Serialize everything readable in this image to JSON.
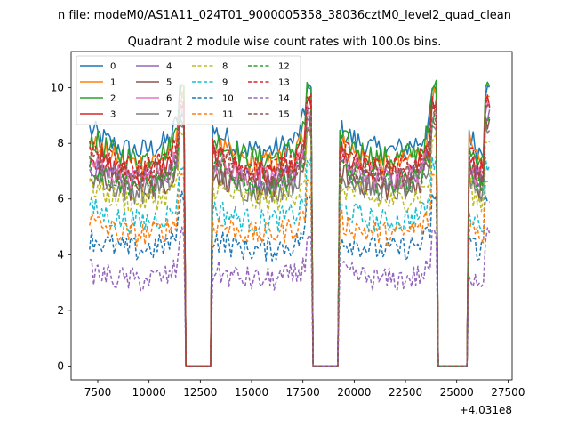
{
  "figure": {
    "suptitle": "n file: modeM0/AS1A11_024T01_9000005358_38036cztM0_level2_quad_clean",
    "title": "Quadrant 2 module wise count rates with 100.0s bins.",
    "offset_label": "+4.031e8"
  },
  "chart_data": {
    "type": "line",
    "title": "Quadrant 2 module wise count rates with 100.0s bins.",
    "xlabel": "",
    "ylabel": "",
    "x_offset": 403100000,
    "xlim": [
      6200,
      27700
    ],
    "ylim": [
      -0.5,
      11.3
    ],
    "xticks": [
      7500,
      10000,
      12500,
      15000,
      17500,
      20000,
      22500,
      25000,
      27500
    ],
    "yticks": [
      0,
      2,
      4,
      6,
      8,
      10
    ],
    "grid": false,
    "legend": {
      "placement": "upper-left",
      "columns": 4
    },
    "good_intervals": [
      [
        7100,
        11750
      ],
      [
        13050,
        17900
      ],
      [
        19250,
        24050
      ],
      [
        25600,
        26650
      ]
    ],
    "bin_seconds": 100,
    "series": [
      {
        "name": "0",
        "color": "#1f77b4",
        "dash": "solid",
        "mean": 8.5,
        "spike": 10.1
      },
      {
        "name": "1",
        "color": "#ff7f0e",
        "dash": "solid",
        "mean": 8.0,
        "spike": 9.9
      },
      {
        "name": "2",
        "color": "#2ca02c",
        "dash": "solid",
        "mean": 8.2,
        "spike": 10.2
      },
      {
        "name": "3",
        "color": "#d62728",
        "dash": "solid",
        "mean": 7.6,
        "spike": 9.6
      },
      {
        "name": "4",
        "color": "#9467bd",
        "dash": "solid",
        "mean": 7.3,
        "spike": 9.2
      },
      {
        "name": "5",
        "color": "#8c564b",
        "dash": "solid",
        "mean": 7.0,
        "spike": 8.9
      },
      {
        "name": "6",
        "color": "#e377c2",
        "dash": "solid",
        "mean": 7.4,
        "spike": 9.4
      },
      {
        "name": "7",
        "color": "#7f7f7f",
        "dash": "solid",
        "mean": 6.9,
        "spike": 8.8
      },
      {
        "name": "8",
        "color": "#bcbd22",
        "dash": "dashed",
        "mean": 6.5,
        "spike": 8.4
      },
      {
        "name": "9",
        "color": "#17becf",
        "dash": "dashed",
        "mean": 5.7,
        "spike": 7.5
      },
      {
        "name": "10",
        "color": "#1f77b4",
        "dash": "dashed",
        "mean": 4.6,
        "spike": 6.3
      },
      {
        "name": "11",
        "color": "#ff7f0e",
        "dash": "dashed",
        "mean": 5.2,
        "spike": 7.0
      },
      {
        "name": "12",
        "color": "#2ca02c",
        "dash": "dashed",
        "mean": 7.2,
        "spike": 9.1
      },
      {
        "name": "13",
        "color": "#d62728",
        "dash": "dashed",
        "mean": 7.8,
        "spike": 9.7
      },
      {
        "name": "14",
        "color": "#9467bd",
        "dash": "dashed",
        "mean": 3.4,
        "spike": 4.9
      },
      {
        "name": "15",
        "color": "#8c564b",
        "dash": "dashed",
        "mean": 7.5,
        "spike": 9.5
      }
    ]
  }
}
